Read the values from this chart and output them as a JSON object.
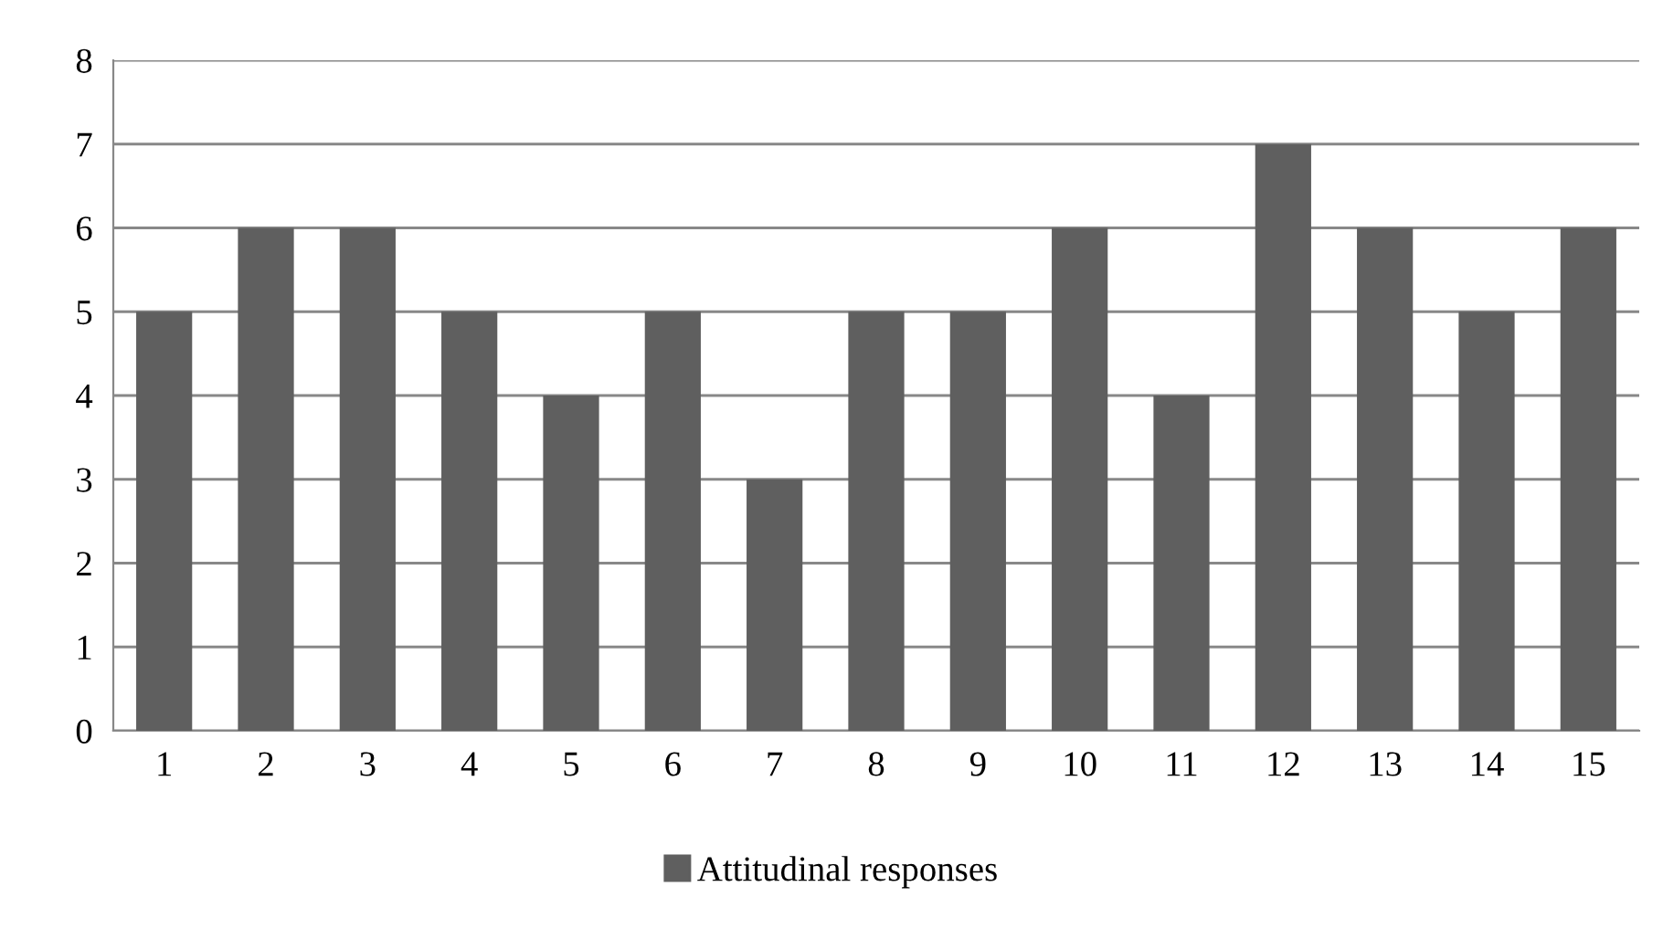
{
  "chart_data": {
    "type": "bar",
    "categories": [
      "1",
      "2",
      "3",
      "4",
      "5",
      "6",
      "7",
      "8",
      "9",
      "10",
      "11",
      "12",
      "13",
      "14",
      "15"
    ],
    "series": [
      {
        "name": "Attitudinal responses",
        "color": "#5f5f5f",
        "values": [
          5,
          6,
          6,
          5,
          4,
          5,
          3,
          5,
          5,
          6,
          4,
          7,
          6,
          5,
          6
        ]
      }
    ],
    "ylim": [
      0,
      8
    ],
    "yticks": [
      0,
      1,
      2,
      3,
      4,
      5,
      6,
      7,
      8
    ],
    "grid": "y",
    "legend": "bottom"
  }
}
